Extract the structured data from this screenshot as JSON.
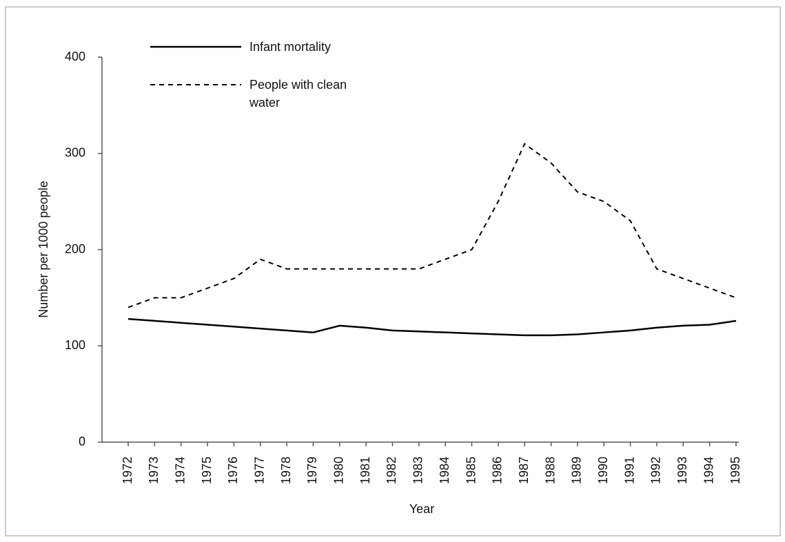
{
  "chart_data": {
    "type": "line",
    "x_label": "Year",
    "y_label": "Number per 1000 people",
    "categories": [
      "1972",
      "1973",
      "1974",
      "1975",
      "1976",
      "1977",
      "1978",
      "1979",
      "1980",
      "1981",
      "1982",
      "1983",
      "1984",
      "1985",
      "1986",
      "1987",
      "1988",
      "1989",
      "1990",
      "1991",
      "1992",
      "1993",
      "1994",
      "1995"
    ],
    "series": [
      {
        "name": "Infant mortality",
        "color": "#000000",
        "dash": "solid",
        "values": [
          128,
          126,
          124,
          122,
          120,
          118,
          116,
          114,
          121,
          119,
          116,
          115,
          114,
          113,
          112,
          111,
          111,
          112,
          114,
          116,
          119,
          121,
          122,
          126
        ]
      },
      {
        "name": "People with clean water",
        "color": "#000000",
        "dash": "dashed",
        "values": [
          140,
          150,
          150,
          160,
          170,
          190,
          180,
          180,
          180,
          180,
          180,
          180,
          190,
          200,
          250,
          310,
          290,
          260,
          250,
          230,
          180,
          170,
          160,
          150
        ]
      }
    ],
    "ylim": [
      0,
      400
    ],
    "yticks": [
      0,
      100,
      200,
      300,
      400
    ],
    "grid": false
  }
}
